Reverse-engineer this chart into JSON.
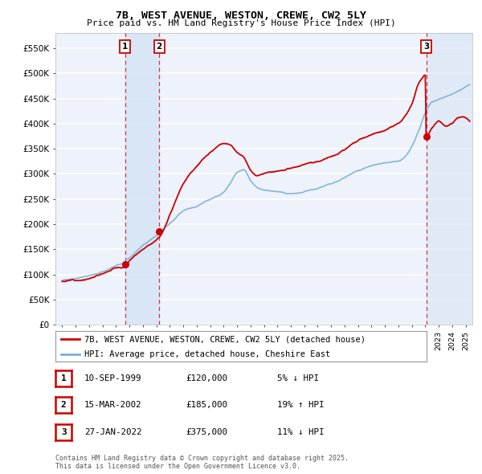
{
  "title": "7B, WEST AVENUE, WESTON, CREWE, CW2 5LY",
  "subtitle": "Price paid vs. HM Land Registry's House Price Index (HPI)",
  "legend_line1": "7B, WEST AVENUE, WESTON, CREWE, CW2 5LY (detached house)",
  "legend_line2": "HPI: Average price, detached house, Cheshire East",
  "transactions": [
    {
      "label": "1",
      "date_num": 1999.69,
      "price": 120000,
      "pct": "5%",
      "dir": "↓",
      "date_str": "10-SEP-1999"
    },
    {
      "label": "2",
      "date_num": 2002.21,
      "price": 185000,
      "pct": "19%",
      "dir": "↑",
      "date_str": "15-MAR-2002"
    },
    {
      "label": "3",
      "date_num": 2022.07,
      "price": 375000,
      "pct": "11%",
      "dir": "↓",
      "date_str": "27-JAN-2022"
    }
  ],
  "yticks": [
    0,
    50000,
    100000,
    150000,
    200000,
    250000,
    300000,
    350000,
    400000,
    450000,
    500000,
    550000
  ],
  "ytick_labels": [
    "£0",
    "£50K",
    "£100K",
    "£150K",
    "£200K",
    "£250K",
    "£300K",
    "£350K",
    "£400K",
    "£450K",
    "£500K",
    "£550K"
  ],
  "xlim": [
    1994.5,
    2025.5
  ],
  "ylim": [
    0,
    580000
  ],
  "hpi_color": "#7bafd4",
  "price_color": "#cc0000",
  "marker_color": "#cc0000",
  "bg_color": "#edf2fb",
  "grid_color": "#ffffff",
  "transaction_shade_color": "#d6e4f5",
  "footer_text": "Contains HM Land Registry data © Crown copyright and database right 2025.\nThis data is licensed under the Open Government Licence v3.0."
}
